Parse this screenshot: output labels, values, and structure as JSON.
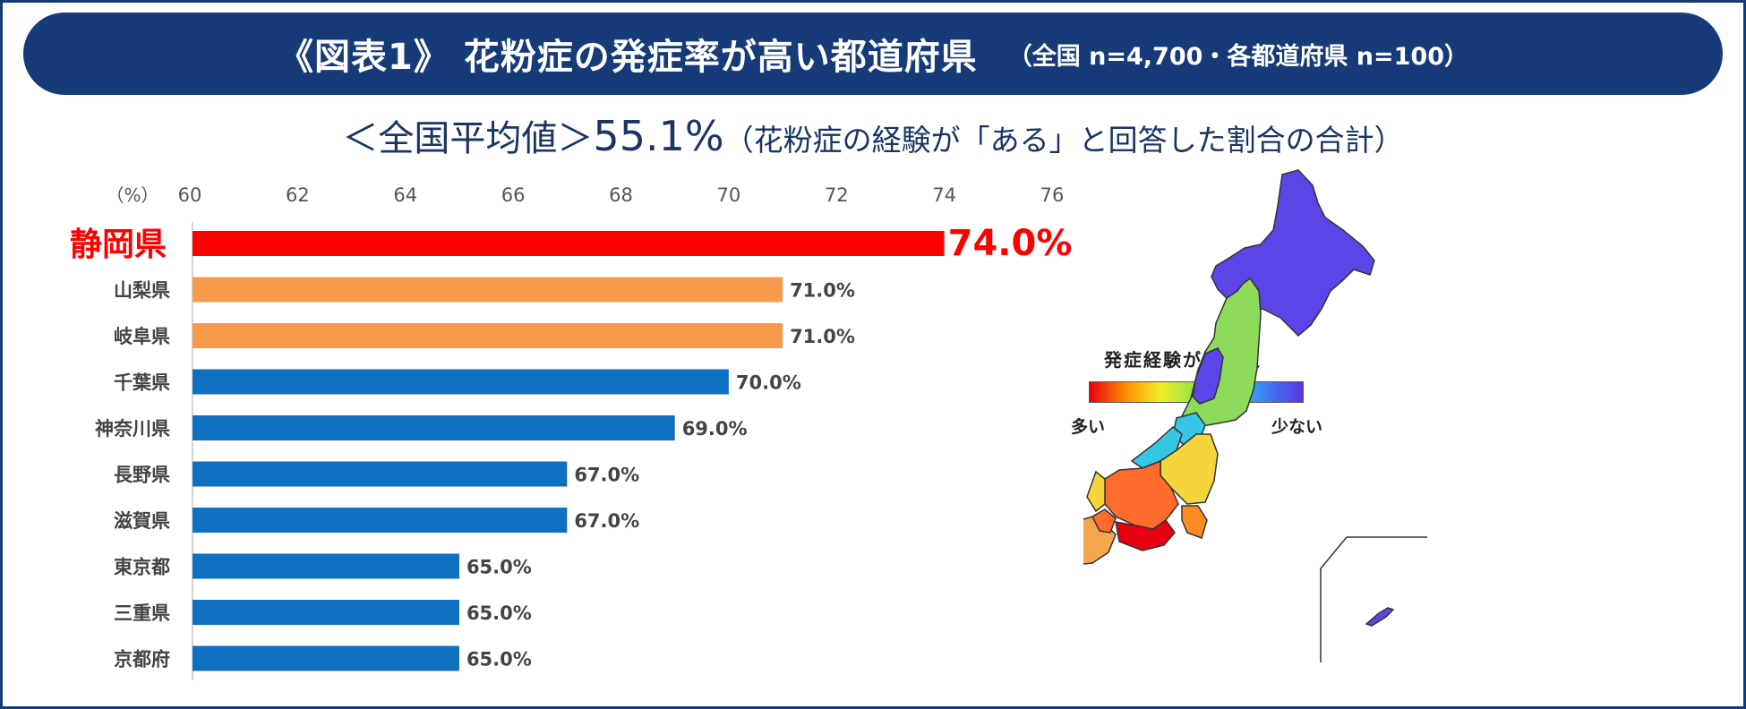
{
  "header": {
    "title": "《図表1》 花粉症の発症率が高い都道府県",
    "sample_note": "（全国 n=4,700・各都道府県 n=100）"
  },
  "subtitle": {
    "label": "＜全国平均値＞",
    "value": "55.1%",
    "note": "（花粉症の経験が「ある」と回答した割合の合計）"
  },
  "legend": {
    "title": "発症経験がある人",
    "low": "多い",
    "high": "少ない"
  },
  "colors": {
    "banner": "#163b78",
    "subtitle": "#1a3564",
    "top": "#ff0000",
    "second": "#f79a4c",
    "others": "#0f6fc0"
  },
  "chart_data": {
    "type": "bar",
    "orientation": "horizontal",
    "unit_label": "（%）",
    "xlim": [
      60,
      76
    ],
    "ticks": [
      60,
      62,
      64,
      66,
      68,
      70,
      72,
      74,
      76
    ],
    "categories": [
      "静岡県",
      "山梨県",
      "岐阜県",
      "千葉県",
      "神奈川県",
      "長野県",
      "滋賀県",
      "東京都",
      "三重県",
      "京都府"
    ],
    "values": [
      74.0,
      71.0,
      71.0,
      70.0,
      69.0,
      67.0,
      67.0,
      65.0,
      65.0,
      65.0
    ],
    "value_labels": [
      "74.0%",
      "71.0%",
      "71.0%",
      "70.0%",
      "69.0%",
      "67.0%",
      "67.0%",
      "65.0%",
      "65.0%",
      "65.0%"
    ],
    "bar_colors": [
      "#ff0000",
      "#f79a4c",
      "#f79a4c",
      "#0f6fc0",
      "#0f6fc0",
      "#0f6fc0",
      "#0f6fc0",
      "#0f6fc0",
      "#0f6fc0",
      "#0f6fc0"
    ]
  }
}
